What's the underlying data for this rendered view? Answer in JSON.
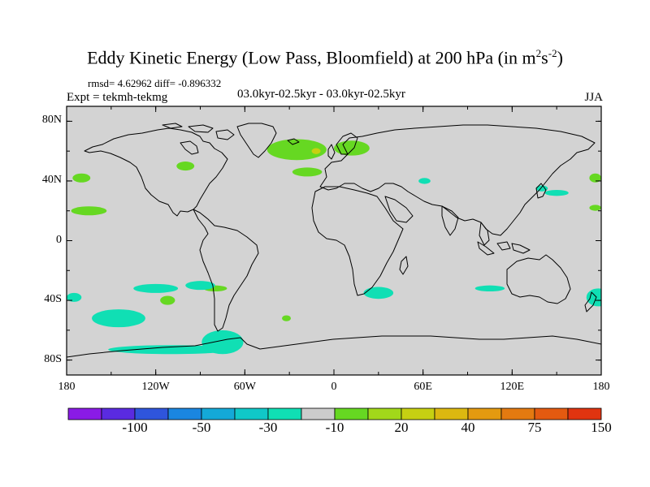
{
  "title_main": "Eddy Kinetic Energy (Low Pass, Bloomfield) at 200 hPa (in m",
  "title_sup1": "2",
  "title_mid": "s",
  "title_sup2": "-2",
  "title_end": ")",
  "stats": "rmsd= 4.62962 diff= -0.896332",
  "expt": "Expt = tekmh-tekmg",
  "period": "03.0kyr-02.5kyr - 03.0kyr-02.5kyr",
  "season": "JJA",
  "map": {
    "projection": "cylindrical-equidistant",
    "lon_range": [
      -180,
      180
    ],
    "lat_range": [
      -90,
      90
    ],
    "ocean_land_fill": "#d3d3d3",
    "coastline_color": "#000000",
    "y_ticks": [
      {
        "label": "80N",
        "lat": 80
      },
      {
        "label": "40N",
        "lat": 40
      },
      {
        "label": "0",
        "lat": 0
      },
      {
        "label": "40S",
        "lat": -40
      },
      {
        "label": "80S",
        "lat": -80
      }
    ],
    "x_ticks": [
      {
        "label": "180",
        "lon": -180
      },
      {
        "label": "120W",
        "lon": -120
      },
      {
        "label": "60W",
        "lon": -60
      },
      {
        "label": "0",
        "lon": 0
      },
      {
        "label": "60E",
        "lon": 60
      },
      {
        "label": "120E",
        "lon": 120
      },
      {
        "label": "180",
        "lon": 180
      }
    ]
  },
  "colorbar": {
    "colors": [
      "#8a1be6",
      "#5a2be0",
      "#2f55dc",
      "#1a86e0",
      "#14a9d8",
      "#10c8c8",
      "#10dfb4",
      "#cccccc",
      "#66d822",
      "#a2d81a",
      "#c6d012",
      "#dcb810",
      "#e49a10",
      "#e47a10",
      "#e45a10",
      "#e03410"
    ],
    "labels": [
      {
        "text": "-100",
        "index": 2
      },
      {
        "text": "-50",
        "index": 4
      },
      {
        "text": "-30",
        "index": 6
      },
      {
        "text": "-10",
        "index": 8
      },
      {
        "text": "20",
        "index": 10
      },
      {
        "text": "40",
        "index": 12
      },
      {
        "text": "75",
        "index": 14
      },
      {
        "text": "150",
        "index": 16
      }
    ]
  },
  "anomalies": [
    {
      "type": "positive",
      "color": "#66d822",
      "lon": -25,
      "lat": 61,
      "rlon": 20,
      "rlat": 7
    },
    {
      "type": "positive",
      "color": "#66d822",
      "lon": 12,
      "lat": 62,
      "rlon": 12,
      "rlat": 5
    },
    {
      "type": "positive",
      "color": "#66d822",
      "lon": -18,
      "lat": 46,
      "rlon": 10,
      "rlat": 3
    },
    {
      "type": "positive",
      "color": "#66d822",
      "lon": -170,
      "lat": 42,
      "rlon": 6,
      "rlat": 3
    },
    {
      "type": "positive",
      "color": "#66d822",
      "lon": -100,
      "lat": 50,
      "rlon": 6,
      "rlat": 3
    },
    {
      "type": "positive",
      "color": "#66d822",
      "lon": -165,
      "lat": 20,
      "rlon": 12,
      "rlat": 3
    },
    {
      "type": "positive",
      "color": "#66d822",
      "lon": -112,
      "lat": -40,
      "rlon": 5,
      "rlat": 3
    },
    {
      "type": "positive",
      "color": "#66d822",
      "lon": -80,
      "lat": -32,
      "rlon": 8,
      "rlat": 2
    },
    {
      "type": "positive",
      "color": "#66d822",
      "lon": -32,
      "lat": -52,
      "rlon": 3,
      "rlat": 2
    },
    {
      "type": "positive",
      "color": "#66d822",
      "lon": 176,
      "lat": 42,
      "rlon": 4,
      "rlat": 3
    },
    {
      "type": "positive",
      "color": "#66d822",
      "lon": 176,
      "lat": 22,
      "rlon": 4,
      "rlat": 2
    },
    {
      "type": "positive",
      "color": "#c6d012",
      "lon": -12,
      "lat": 60,
      "rlon": 3,
      "rlat": 2
    },
    {
      "type": "negative",
      "color": "#10dfb4",
      "lon": -145,
      "lat": -52,
      "rlon": 18,
      "rlat": 6
    },
    {
      "type": "negative",
      "color": "#10dfb4",
      "lon": -120,
      "lat": -32,
      "rlon": 15,
      "rlat": 3
    },
    {
      "type": "negative",
      "color": "#10dfb4",
      "lon": -90,
      "lat": -30,
      "rlon": 10,
      "rlat": 3
    },
    {
      "type": "negative",
      "color": "#10dfb4",
      "lon": -175,
      "lat": -38,
      "rlon": 5,
      "rlat": 3
    },
    {
      "type": "negative",
      "color": "#10dfb4",
      "lon": -110,
      "lat": -73,
      "rlon": 42,
      "rlat": 3
    },
    {
      "type": "negative",
      "color": "#10dfb4",
      "lon": -75,
      "lat": -68,
      "rlon": 14,
      "rlat": 8
    },
    {
      "type": "negative",
      "color": "#10dfb4",
      "lon": 30,
      "lat": -35,
      "rlon": 10,
      "rlat": 4
    },
    {
      "type": "negative",
      "color": "#10dfb4",
      "lon": 105,
      "lat": -32,
      "rlon": 10,
      "rlat": 2
    },
    {
      "type": "negative",
      "color": "#10dfb4",
      "lon": 178,
      "lat": -38,
      "rlon": 8,
      "rlat": 6
    },
    {
      "type": "negative",
      "color": "#10dfb4",
      "lon": 150,
      "lat": 32,
      "rlon": 8,
      "rlat": 2
    },
    {
      "type": "negative",
      "color": "#10dfb4",
      "lon": 140,
      "lat": 35,
      "rlon": 4,
      "rlat": 2
    },
    {
      "type": "negative",
      "color": "#10dfb4",
      "lon": 61,
      "lat": 40,
      "rlon": 4,
      "rlat": 2
    }
  ]
}
